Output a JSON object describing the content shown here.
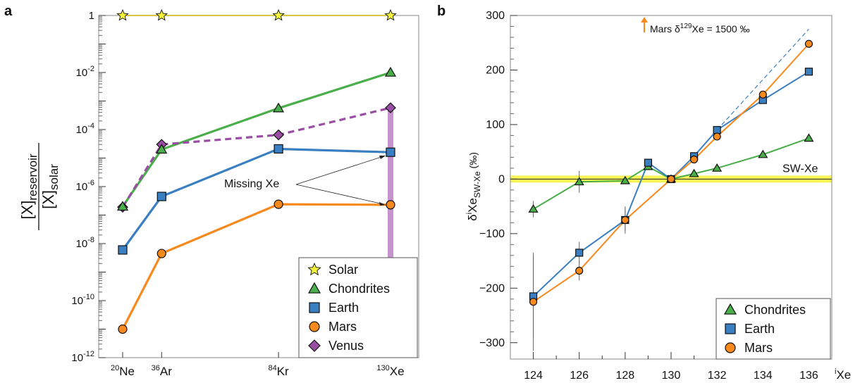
{
  "chart_data": [
    {
      "panel": "a",
      "type": "line",
      "y_scale": "log",
      "ylim": [
        1e-12,
        1
      ],
      "ytick_labels": [
        {
          "base": "1",
          "exp": "",
          "value": 1
        },
        {
          "base": "10",
          "exp": "-2",
          "value": 0.01
        },
        {
          "base": "10",
          "exp": "-4",
          "value": 0.0001
        },
        {
          "base": "10",
          "exp": "-6",
          "value": 1e-06
        },
        {
          "base": "10",
          "exp": "-8",
          "value": 1e-08
        },
        {
          "base": "10",
          "exp": "-10",
          "value": 1e-10
        },
        {
          "base": "10",
          "exp": "-12",
          "value": 1e-12
        }
      ],
      "categories": [
        {
          "sup": "20",
          "name": "Ne",
          "mass": 20
        },
        {
          "sup": "36",
          "name": "Ar",
          "mass": 36
        },
        {
          "sup": "84",
          "name": "Kr",
          "mass": 84
        },
        {
          "sup": "130",
          "name": "Xe",
          "mass": 130
        }
      ],
      "ylabel": {
        "num_main": "[X]",
        "num_sub": "reservoir",
        "den_main": "[X]",
        "den_sub": "solar"
      },
      "series": [
        {
          "name": "Solar",
          "color": "#f5f23a",
          "line_color": "#c8b400",
          "marker": "star",
          "dashed": false,
          "values": [
            1,
            1,
            1,
            1
          ]
        },
        {
          "name": "Chondrites",
          "color": "#4aae4a",
          "line_color": "#4aae4a",
          "marker": "triangle",
          "dashed": false,
          "values": [
            2e-07,
            2e-05,
            0.00056,
            0.01
          ]
        },
        {
          "name": "Earth",
          "color": "#3a7fc1",
          "line_color": "#3a7fc1",
          "marker": "square",
          "dashed": false,
          "values": [
            6e-09,
            4.5e-07,
            2.1e-05,
            1.6e-05
          ]
        },
        {
          "name": "Mars",
          "color": "#f7891d",
          "line_color": "#f7891d",
          "marker": "circle",
          "dashed": false,
          "values": [
            1e-11,
            4.5e-09,
            2.4e-07,
            2.3e-07
          ]
        },
        {
          "name": "Venus",
          "color": "#9a4ea3",
          "line_color": "#9a4ea3",
          "marker": "diamond",
          "dashed": true,
          "values": [
            1.9e-07,
            3e-05,
            6.5e-05,
            0.00058
          ]
        }
      ],
      "venus_xe_range": [
        1e-09,
        0.00058
      ],
      "annotation": "Missing Xe",
      "legend_position": "bottom-right"
    },
    {
      "panel": "b",
      "type": "line",
      "xlim": [
        123,
        137
      ],
      "ylim": [
        -330,
        300
      ],
      "xticks": [
        124,
        126,
        128,
        130,
        132,
        134,
        136
      ],
      "yticks": [
        300,
        200,
        100,
        0,
        -100,
        -200,
        -300
      ],
      "xlabel": {
        "sup": "i",
        "main": "Xe"
      },
      "ylabel": {
        "pre": "δ",
        "sup": "i",
        "main": "Xe",
        "sub": "SW-Xe",
        "unit": " (‰)"
      },
      "reference_label": "SW-Xe",
      "annotation": {
        "pre": "Mars δ",
        "sup": "129",
        "post": "Xe = 1500 ‰"
      },
      "series": [
        {
          "name": "Chondrites",
          "color": "#4aae4a",
          "marker": "triangle",
          "x": [
            124,
            126,
            128,
            129,
            130,
            131,
            132,
            134,
            136
          ],
          "y": [
            -55,
            -5,
            -3,
            23,
            0,
            10,
            20,
            45,
            75
          ],
          "err": [
            15,
            20,
            5,
            5,
            2,
            3,
            3,
            4,
            5
          ]
        },
        {
          "name": "Earth",
          "color": "#3a7fc1",
          "marker": "square",
          "x": [
            124,
            126,
            128,
            129,
            130,
            131,
            132,
            134,
            136
          ],
          "y": [
            -215,
            -135,
            -75,
            30,
            0,
            42,
            90,
            145,
            197
          ],
          "err": [
            75,
            20,
            20,
            5,
            2,
            4,
            4,
            4,
            4
          ]
        },
        {
          "name": "Mars",
          "color": "#f7891d",
          "marker": "circle",
          "x": [
            124,
            126,
            128,
            130,
            131,
            132,
            134,
            136
          ],
          "y": [
            -225,
            -168,
            -75,
            0,
            36,
            78,
            155,
            248
          ],
          "err": [
            90,
            18,
            25,
            2,
            4,
            4,
            4,
            4
          ]
        }
      ],
      "dashed_projection": {
        "color": "#3a7fc1",
        "x": [
          132,
          136
        ],
        "y": [
          90,
          275
        ]
      },
      "legend_position": "bottom-right"
    }
  ]
}
